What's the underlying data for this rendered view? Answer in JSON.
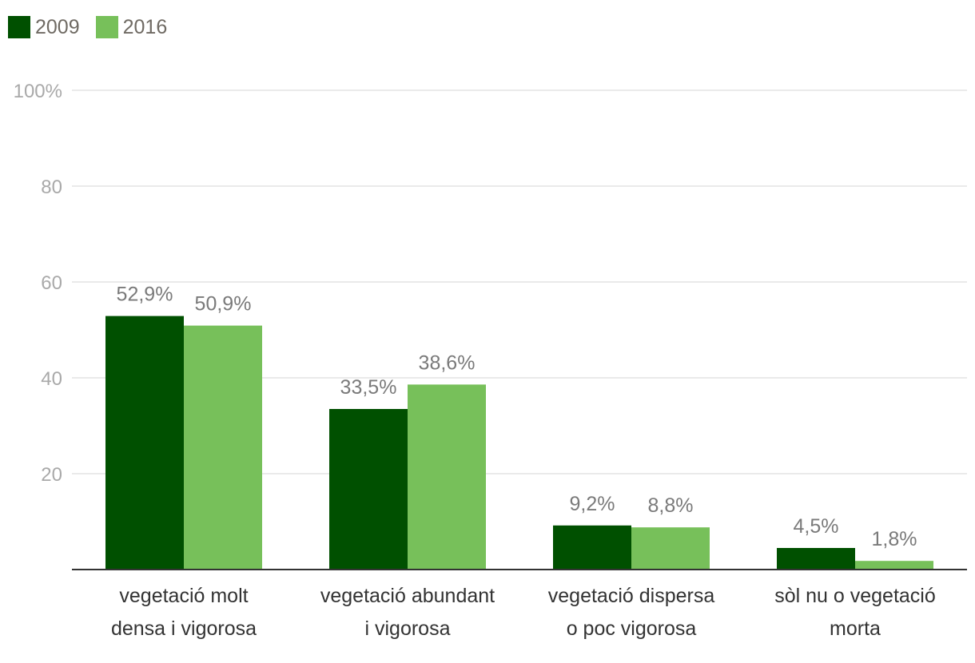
{
  "legend": [
    {
      "label": "2009",
      "color": "#005000"
    },
    {
      "label": "2016",
      "color": "#77c05a"
    }
  ],
  "chart_data": {
    "type": "bar",
    "categories": [
      [
        "vegetació molt",
        "densa i vigorosa"
      ],
      [
        "vegetació abundant",
        "i vigorosa"
      ],
      [
        "vegetació dispersa",
        "o poc vigorosa"
      ],
      [
        "sòl nu o vegetació",
        "morta"
      ]
    ],
    "series": [
      {
        "name": "2009",
        "color": "#005000",
        "values": [
          52.9,
          33.5,
          9.2,
          4.5
        ],
        "labels": [
          "52,9%",
          "33,5%",
          "9,2%",
          "4,5%"
        ]
      },
      {
        "name": "2016",
        "color": "#77c05a",
        "values": [
          50.9,
          38.6,
          8.8,
          1.8
        ],
        "labels": [
          "50,9%",
          "38,6%",
          "8,8%",
          "1,8%"
        ]
      }
    ],
    "yticks": [
      {
        "value": 20,
        "label": "20"
      },
      {
        "value": 40,
        "label": "40"
      },
      {
        "value": 60,
        "label": "60"
      },
      {
        "value": 80,
        "label": "80"
      },
      {
        "value": 100,
        "label": "100%"
      }
    ],
    "ylim": [
      0,
      100
    ],
    "grid": true,
    "legend_position": "top-left"
  }
}
